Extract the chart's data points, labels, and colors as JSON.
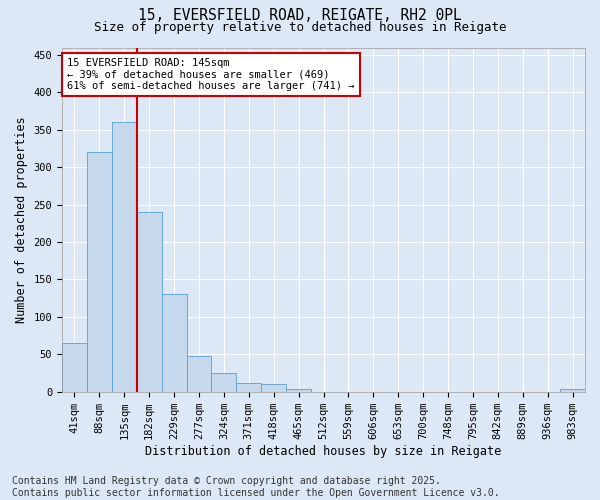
{
  "title_line1": "15, EVERSFIELD ROAD, REIGATE, RH2 0PL",
  "title_line2": "Size of property relative to detached houses in Reigate",
  "xlabel": "Distribution of detached houses by size in Reigate",
  "ylabel": "Number of detached properties",
  "categories": [
    "41sqm",
    "88sqm",
    "135sqm",
    "182sqm",
    "229sqm",
    "277sqm",
    "324sqm",
    "371sqm",
    "418sqm",
    "465sqm",
    "512sqm",
    "559sqm",
    "606sqm",
    "653sqm",
    "700sqm",
    "748sqm",
    "795sqm",
    "842sqm",
    "889sqm",
    "936sqm",
    "983sqm"
  ],
  "values": [
    65,
    320,
    360,
    240,
    130,
    48,
    25,
    12,
    10,
    4,
    0,
    0,
    0,
    0,
    0,
    0,
    0,
    0,
    0,
    0,
    3
  ],
  "bar_color": "#c5d8ec",
  "bar_edge_color": "#5a9fd4",
  "vline_color": "#cc0000",
  "annotation_text": "15 EVERSFIELD ROAD: 145sqm\n← 39% of detached houses are smaller (469)\n61% of semi-detached houses are larger (741) →",
  "annotation_box_color": "#ffffff",
  "annotation_box_edge": "#cc0000",
  "ylim": [
    0,
    460
  ],
  "yticks": [
    0,
    50,
    100,
    150,
    200,
    250,
    300,
    350,
    400,
    450
  ],
  "background_color": "#dce8f5",
  "plot_background": "#dce8f5",
  "grid_color": "#ffffff",
  "footer_line1": "Contains HM Land Registry data © Crown copyright and database right 2025.",
  "footer_line2": "Contains public sector information licensed under the Open Government Licence v3.0.",
  "title_fontsize": 10.5,
  "subtitle_fontsize": 9,
  "axis_label_fontsize": 8.5,
  "tick_fontsize": 7.5,
  "footer_fontsize": 7,
  "annotation_fontsize": 7.5,
  "vline_x_index": 2
}
